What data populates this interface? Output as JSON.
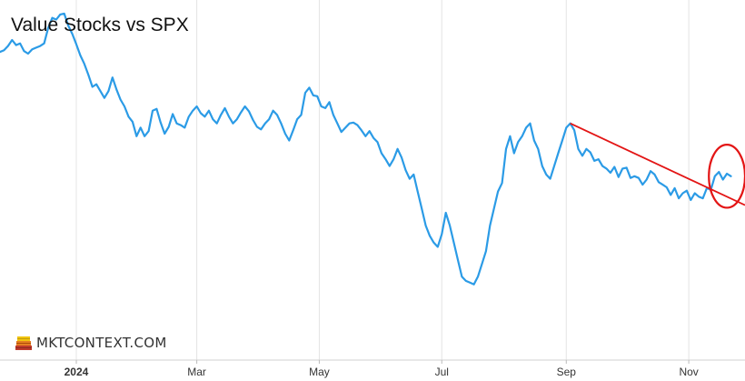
{
  "chart_data": {
    "type": "line",
    "title": "Value Stocks vs SPX",
    "xlabel": "",
    "ylabel": "",
    "x_ticks": [
      {
        "date": "2024-01-01",
        "label": "2024",
        "bold": true
      },
      {
        "date": "2024-03-01",
        "label": "Mar"
      },
      {
        "date": "2024-05-01",
        "label": "May"
      },
      {
        "date": "2024-07-01",
        "label": "Jul"
      },
      {
        "date": "2024-09-01",
        "label": "Sep"
      },
      {
        "date": "2024-11-01",
        "label": "Nov"
      }
    ],
    "xlim": [
      "2023-11-24",
      "2024-11-29"
    ],
    "ylim": [
      -88,
      335
    ],
    "grid": "vertical",
    "colors": {
      "series": "#2b9be6",
      "trendline": "#e31515",
      "annotation": "#e31515",
      "grid": "#e4e4e4"
    },
    "series": [
      {
        "points": [
          [
            "2023-11-24",
            274
          ],
          [
            "2023-11-26",
            276
          ],
          [
            "2023-11-28",
            281
          ],
          [
            "2023-11-30",
            288
          ],
          [
            "2023-12-02",
            282
          ],
          [
            "2023-12-04",
            284
          ],
          [
            "2023-12-06",
            275
          ],
          [
            "2023-12-08",
            272
          ],
          [
            "2023-12-10",
            277
          ],
          [
            "2023-12-12",
            279
          ],
          [
            "2023-12-14",
            281
          ],
          [
            "2023-12-16",
            284
          ],
          [
            "2023-12-18",
            302
          ],
          [
            "2023-12-20",
            314
          ],
          [
            "2023-12-22",
            312
          ],
          [
            "2023-12-24",
            318
          ],
          [
            "2023-12-26",
            319
          ],
          [
            "2023-12-28",
            305
          ],
          [
            "2023-12-30",
            295
          ],
          [
            "2024-01-01",
            283
          ],
          [
            "2024-01-03",
            270
          ],
          [
            "2024-01-05",
            260
          ],
          [
            "2024-01-07",
            247
          ],
          [
            "2024-01-09",
            233
          ],
          [
            "2024-01-11",
            236
          ],
          [
            "2024-01-13",
            228
          ],
          [
            "2024-01-15",
            220
          ],
          [
            "2024-01-17",
            228
          ],
          [
            "2024-01-19",
            244
          ],
          [
            "2024-01-21",
            230
          ],
          [
            "2024-01-23",
            218
          ],
          [
            "2024-01-25",
            210
          ],
          [
            "2024-01-27",
            198
          ],
          [
            "2024-01-29",
            192
          ],
          [
            "2024-01-31",
            175
          ],
          [
            "2024-02-02",
            185
          ],
          [
            "2024-02-04",
            175
          ],
          [
            "2024-02-06",
            181
          ],
          [
            "2024-02-08",
            205
          ],
          [
            "2024-02-10",
            207
          ],
          [
            "2024-02-12",
            191
          ],
          [
            "2024-02-14",
            178
          ],
          [
            "2024-02-16",
            186
          ],
          [
            "2024-02-18",
            201
          ],
          [
            "2024-02-20",
            190
          ],
          [
            "2024-02-22",
            188
          ],
          [
            "2024-02-24",
            185
          ],
          [
            "2024-02-26",
            198
          ],
          [
            "2024-02-28",
            205
          ],
          [
            "2024-03-01",
            210
          ],
          [
            "2024-03-03",
            202
          ],
          [
            "2024-03-05",
            198
          ],
          [
            "2024-03-07",
            205
          ],
          [
            "2024-03-09",
            195
          ],
          [
            "2024-03-11",
            190
          ],
          [
            "2024-03-13",
            200
          ],
          [
            "2024-03-15",
            208
          ],
          [
            "2024-03-17",
            198
          ],
          [
            "2024-03-19",
            190
          ],
          [
            "2024-03-21",
            195
          ],
          [
            "2024-03-23",
            203
          ],
          [
            "2024-03-25",
            210
          ],
          [
            "2024-03-27",
            204
          ],
          [
            "2024-03-29",
            194
          ],
          [
            "2024-03-31",
            186
          ],
          [
            "2024-04-02",
            183
          ],
          [
            "2024-04-04",
            190
          ],
          [
            "2024-04-06",
            195
          ],
          [
            "2024-04-08",
            205
          ],
          [
            "2024-04-10",
            200
          ],
          [
            "2024-04-12",
            190
          ],
          [
            "2024-04-14",
            178
          ],
          [
            "2024-04-16",
            170
          ],
          [
            "2024-04-18",
            182
          ],
          [
            "2024-04-20",
            195
          ],
          [
            "2024-04-22",
            200
          ],
          [
            "2024-04-24",
            226
          ],
          [
            "2024-04-26",
            232
          ],
          [
            "2024-04-28",
            223
          ],
          [
            "2024-04-30",
            222
          ],
          [
            "2024-05-02",
            210
          ],
          [
            "2024-05-04",
            208
          ],
          [
            "2024-05-06",
            215
          ],
          [
            "2024-05-08",
            200
          ],
          [
            "2024-05-10",
            190
          ],
          [
            "2024-05-12",
            180
          ],
          [
            "2024-05-14",
            185
          ],
          [
            "2024-05-16",
            190
          ],
          [
            "2024-05-18",
            191
          ],
          [
            "2024-05-20",
            188
          ],
          [
            "2024-05-22",
            182
          ],
          [
            "2024-05-24",
            175
          ],
          [
            "2024-05-26",
            181
          ],
          [
            "2024-05-28",
            173
          ],
          [
            "2024-05-30",
            168
          ],
          [
            "2024-06-01",
            155
          ],
          [
            "2024-06-03",
            148
          ],
          [
            "2024-06-05",
            140
          ],
          [
            "2024-06-07",
            148
          ],
          [
            "2024-06-09",
            160
          ],
          [
            "2024-06-11",
            150
          ],
          [
            "2024-06-13",
            135
          ],
          [
            "2024-06-15",
            125
          ],
          [
            "2024-06-17",
            130
          ],
          [
            "2024-06-19",
            110
          ],
          [
            "2024-06-21",
            90
          ],
          [
            "2024-06-23",
            70
          ],
          [
            "2024-06-25",
            58
          ],
          [
            "2024-06-27",
            50
          ],
          [
            "2024-06-29",
            45
          ],
          [
            "2024-07-01",
            60
          ],
          [
            "2024-07-03",
            85
          ],
          [
            "2024-07-05",
            70
          ],
          [
            "2024-07-07",
            50
          ],
          [
            "2024-07-09",
            30
          ],
          [
            "2024-07-11",
            10
          ],
          [
            "2024-07-13",
            5
          ],
          [
            "2024-07-15",
            3
          ],
          [
            "2024-07-17",
            1
          ],
          [
            "2024-07-19",
            10
          ],
          [
            "2024-07-21",
            25
          ],
          [
            "2024-07-23",
            40
          ],
          [
            "2024-07-25",
            70
          ],
          [
            "2024-07-27",
            90
          ],
          [
            "2024-07-29",
            110
          ],
          [
            "2024-07-31",
            120
          ],
          [
            "2024-08-02",
            160
          ],
          [
            "2024-08-04",
            175
          ],
          [
            "2024-08-06",
            155
          ],
          [
            "2024-08-08",
            168
          ],
          [
            "2024-08-10",
            175
          ],
          [
            "2024-08-12",
            185
          ],
          [
            "2024-08-14",
            190
          ],
          [
            "2024-08-16",
            170
          ],
          [
            "2024-08-18",
            160
          ],
          [
            "2024-08-20",
            140
          ],
          [
            "2024-08-22",
            130
          ],
          [
            "2024-08-24",
            125
          ],
          [
            "2024-08-26",
            140
          ],
          [
            "2024-08-28",
            155
          ],
          [
            "2024-08-30",
            170
          ],
          [
            "2024-09-01",
            185
          ],
          [
            "2024-09-03",
            190
          ],
          [
            "2024-09-05",
            182
          ],
          [
            "2024-09-07",
            160
          ],
          [
            "2024-09-09",
            152
          ],
          [
            "2024-09-11",
            160
          ],
          [
            "2024-09-13",
            156
          ],
          [
            "2024-09-15",
            146
          ],
          [
            "2024-09-17",
            148
          ],
          [
            "2024-09-19",
            140
          ],
          [
            "2024-09-21",
            137
          ],
          [
            "2024-09-23",
            132
          ],
          [
            "2024-09-25",
            139
          ],
          [
            "2024-09-27",
            127
          ],
          [
            "2024-09-29",
            137
          ],
          [
            "2024-10-01",
            138
          ],
          [
            "2024-10-03",
            126
          ],
          [
            "2024-10-05",
            128
          ],
          [
            "2024-10-07",
            126
          ],
          [
            "2024-10-09",
            118
          ],
          [
            "2024-10-11",
            124
          ],
          [
            "2024-10-13",
            134
          ],
          [
            "2024-10-15",
            130
          ],
          [
            "2024-10-17",
            121
          ],
          [
            "2024-10-19",
            118
          ],
          [
            "2024-10-21",
            115
          ],
          [
            "2024-10-23",
            106
          ],
          [
            "2024-10-25",
            114
          ],
          [
            "2024-10-27",
            102
          ],
          [
            "2024-10-29",
            108
          ],
          [
            "2024-10-31",
            111
          ],
          [
            "2024-11-02",
            100
          ],
          [
            "2024-11-04",
            108
          ],
          [
            "2024-11-06",
            104
          ],
          [
            "2024-11-08",
            102
          ],
          [
            "2024-11-10",
            114
          ],
          [
            "2024-11-12",
            112
          ],
          [
            "2024-11-14",
            128
          ],
          [
            "2024-11-16",
            133
          ],
          [
            "2024-11-18",
            124
          ],
          [
            "2024-11-20",
            131
          ],
          [
            "2024-11-22",
            128
          ]
        ]
      }
    ],
    "annotations": [
      {
        "type": "trendline",
        "from": [
          "2024-09-03",
          190
        ],
        "to": [
          "2024-11-29",
          94
        ]
      },
      {
        "type": "circle",
        "center": [
          "2024-11-20",
          128
        ],
        "radius_days": 9,
        "radius_y": 37
      }
    ]
  },
  "watermark": {
    "text": "MKTCONTEXT.COM",
    "icon": "stacked-books-icon"
  }
}
